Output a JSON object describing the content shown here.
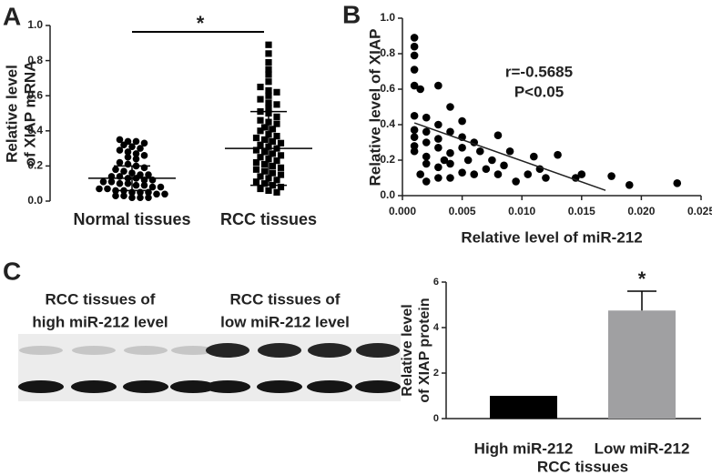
{
  "chart_data": [
    {
      "type": "strip",
      "panel_label": "A",
      "ylabel": [
        "Relative level",
        "of XIAP mRNA"
      ],
      "categories": [
        "Normal  tissues",
        "RCC tissues"
      ],
      "series": [
        {
          "marker": "circle",
          "color": "#000000",
          "mean": 0.13,
          "sd": 0.07,
          "values": [
            0.35,
            0.34,
            0.34,
            0.33,
            0.32,
            0.31,
            0.3,
            0.29,
            0.28,
            0.27,
            0.26,
            0.25,
            0.24,
            0.22,
            0.21,
            0.2,
            0.19,
            0.18,
            0.17,
            0.16,
            0.15,
            0.15,
            0.14,
            0.14,
            0.13,
            0.13,
            0.12,
            0.12,
            0.11,
            0.11,
            0.1,
            0.1,
            0.09,
            0.09,
            0.08,
            0.08,
            0.07,
            0.07,
            0.06,
            0.06,
            0.05,
            0.05,
            0.05,
            0.04,
            0.04,
            0.03,
            0.03,
            0.02,
            0.02,
            0.02
          ]
        },
        {
          "marker": "square",
          "color": "#000000",
          "mean": 0.3,
          "sd": 0.21,
          "values": [
            0.89,
            0.84,
            0.79,
            0.75,
            0.72,
            0.68,
            0.65,
            0.63,
            0.62,
            0.6,
            0.58,
            0.56,
            0.55,
            0.53,
            0.51,
            0.5,
            0.48,
            0.46,
            0.45,
            0.44,
            0.42,
            0.41,
            0.4,
            0.38,
            0.37,
            0.36,
            0.35,
            0.34,
            0.33,
            0.32,
            0.31,
            0.3,
            0.29,
            0.28,
            0.27,
            0.26,
            0.25,
            0.24,
            0.23,
            0.22,
            0.21,
            0.2,
            0.19,
            0.18,
            0.17,
            0.16,
            0.15,
            0.14,
            0.13,
            0.12,
            0.11,
            0.1,
            0.09,
            0.08,
            0.07,
            0.06,
            0.05
          ]
        }
      ],
      "annotation": "*",
      "ylim": [
        0,
        1.0
      ],
      "yticks": [
        {
          "value": 0,
          "label": "0.0"
        },
        0.2,
        0.4,
        0.6,
        0.8,
        {
          "value": 1,
          "label": "1.0"
        }
      ]
    },
    {
      "type": "scatter",
      "panel_label": "B",
      "xlabel": "Relative level of miR-212",
      "ylabel": "Relative level of XIAP",
      "x": [
        0.001,
        0.001,
        0.001,
        0.001,
        0.001,
        0.0015,
        0.001,
        0.001,
        0.001,
        0.001,
        0.001,
        0.002,
        0.002,
        0.002,
        0.002,
        0.002,
        0.0015,
        0.002,
        0.003,
        0.003,
        0.003,
        0.003,
        0.003,
        0.003,
        0.0035,
        0.004,
        0.004,
        0.004,
        0.004,
        0.004,
        0.005,
        0.005,
        0.005,
        0.005,
        0.0055,
        0.006,
        0.006,
        0.0065,
        0.007,
        0.0075,
        0.008,
        0.008,
        0.0085,
        0.009,
        0.0095,
        0.0105,
        0.011,
        0.0115,
        0.012,
        0.013,
        0.0145,
        0.015,
        0.0175,
        0.019,
        0.023
      ],
      "y": [
        0.89,
        0.84,
        0.79,
        0.71,
        0.62,
        0.6,
        0.45,
        0.37,
        0.33,
        0.28,
        0.25,
        0.44,
        0.36,
        0.3,
        0.22,
        0.18,
        0.12,
        0.08,
        0.62,
        0.4,
        0.32,
        0.27,
        0.16,
        0.1,
        0.2,
        0.5,
        0.36,
        0.24,
        0.18,
        0.1,
        0.42,
        0.33,
        0.27,
        0.13,
        0.2,
        0.3,
        0.12,
        0.25,
        0.15,
        0.2,
        0.34,
        0.12,
        0.17,
        0.25,
        0.08,
        0.12,
        0.22,
        0.15,
        0.1,
        0.23,
        0.1,
        0.12,
        0.11,
        0.06,
        0.07
      ],
      "color": "#000000",
      "fit": {
        "x": [
          0.001,
          0.017
        ],
        "y": [
          0.41,
          0.03
        ]
      },
      "annotations": [
        "r=-0.5685",
        "P<0.05"
      ],
      "xlim": [
        0,
        0.025
      ],
      "xticks": [
        {
          "value": 0,
          "label": "0.000"
        },
        {
          "value": 0.005,
          "label": "0.005"
        },
        {
          "value": 0.01,
          "label": "0.010"
        },
        {
          "value": 0.015,
          "label": "0.015"
        },
        {
          "value": 0.02,
          "label": "0.020"
        },
        {
          "value": 0.025,
          "label": "0.025"
        }
      ],
      "ylim": [
        0,
        1.0
      ],
      "yticks": [
        {
          "value": 0,
          "label": "0.0"
        },
        0.2,
        0.4,
        0.6,
        0.8,
        {
          "value": 1,
          "label": "1.0"
        }
      ]
    },
    {
      "type": "bar",
      "ylabel": [
        "Relative level",
        "of XIAP protein"
      ],
      "xlabel": "RCC tissues",
      "categories": [
        "High miR-212",
        "Low miR-212"
      ],
      "values": [
        1,
        4.75
      ],
      "errors": [
        null,
        0.85
      ],
      "colors": [
        "#000000",
        "#a0a0a2"
      ],
      "annotation": "*",
      "ylim": [
        0,
        6
      ],
      "yticks": [
        0,
        2,
        4,
        6
      ]
    }
  ],
  "blot": {
    "panel_label": "C",
    "groups": [
      {
        "label": [
          "RCC tissues of",
          "high miR-212 level"
        ]
      },
      {
        "label": [
          "RCC tissues of",
          "low miR-212 level"
        ]
      }
    ]
  }
}
